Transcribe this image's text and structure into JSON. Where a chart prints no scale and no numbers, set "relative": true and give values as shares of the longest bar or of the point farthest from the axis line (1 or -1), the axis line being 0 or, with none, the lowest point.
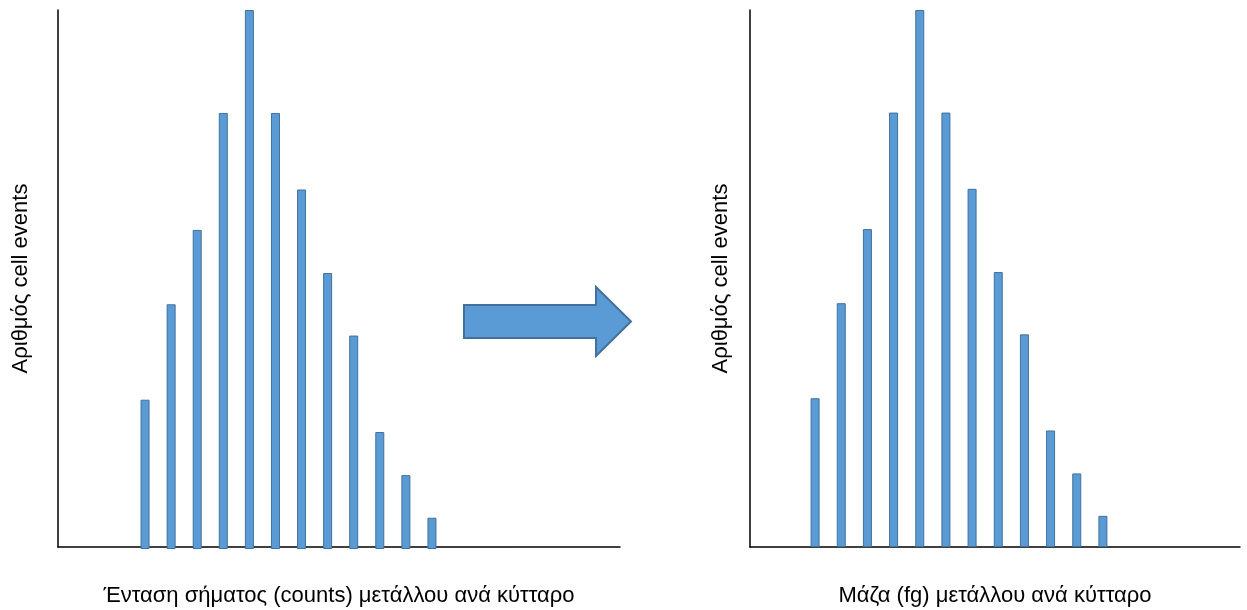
{
  "chart_data": [
    {
      "type": "bar",
      "relative": true,
      "xlabel": "Ένταση σήματος (counts) μετάλλου ανά κύτταρο",
      "ylabel": "Αριθμός cell events",
      "categories": [
        null,
        null,
        null,
        null,
        null,
        null,
        null,
        null,
        null,
        null,
        null,
        null
      ],
      "series": [
        {
          "color": "#5b9bd5",
          "values": [
            0.277,
            0.454,
            0.592,
            0.809,
            1,
            0.809,
            0.667,
            0.512,
            0.396,
            0.217,
            0.137,
            0.058
          ]
        }
      ],
      "grid": false
    },
    {
      "type": "bar",
      "relative": true,
      "xlabel": "Μάζα (fg) μετάλλου ανά κύτταρο",
      "ylabel": "Αριθμός cell events",
      "categories": [
        null,
        null,
        null,
        null,
        null,
        null,
        null,
        null,
        null,
        null,
        null,
        null
      ],
      "series": [
        {
          "color": "#5b9bd5",
          "values": [
            0.277,
            0.454,
            0.592,
            0.809,
            1,
            0.809,
            0.667,
            0.512,
            0.396,
            0.217,
            0.137,
            0.058
          ]
        }
      ],
      "grid": false
    }
  ]
}
